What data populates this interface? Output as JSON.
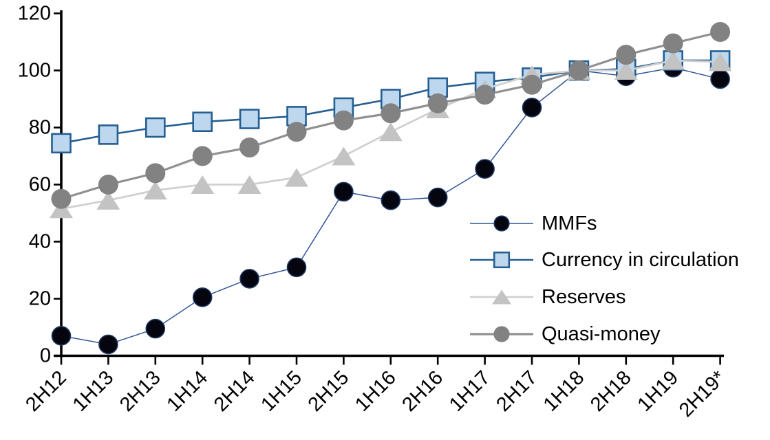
{
  "background": "#ffffff",
  "axis_color": "#000000",
  "chart_data": {
    "type": "line",
    "title": "",
    "xlabel": "",
    "ylabel": "",
    "grid": false,
    "categories": [
      "2H12",
      "1H13",
      "2H13",
      "1H14",
      "2H14",
      "1H15",
      "2H15",
      "1H16",
      "2H16",
      "1H17",
      "2H17",
      "1H18",
      "2H18",
      "1H19",
      "2H19*"
    ],
    "y_axis": {
      "min": 0,
      "max": 120,
      "step": 20,
      "tick_labels": [
        "0",
        "20",
        "40",
        "60",
        "80",
        "100",
        "120"
      ]
    },
    "series": [
      {
        "name": "MMFs",
        "slug": "mmfs",
        "marker": "circle",
        "marker_size": 27,
        "marker_fill": "#05050f",
        "marker_stroke": "#1f3864",
        "marker_stroke_width": 1.6,
        "line_color": "#2f5597",
        "line_width": 1.5,
        "values": [
          7,
          4,
          9.5,
          20.5,
          27,
          31,
          57.5,
          54.5,
          55.5,
          65.5,
          87,
          100,
          98,
          101,
          97
        ]
      },
      {
        "name": "Currency in circulation",
        "slug": "currency-in-circulation",
        "marker": "square",
        "marker_size": 27,
        "marker_fill": "#bdd7ee",
        "marker_stroke": "#255e91",
        "marker_stroke_width": 2.6,
        "line_color": "#255e91",
        "line_width": 2.6,
        "values": [
          74.5,
          77.5,
          80,
          82,
          83,
          84,
          87,
          90,
          94,
          96,
          97.5,
          100,
          100.5,
          103.5,
          103.5
        ]
      },
      {
        "name": "Reserves",
        "slug": "reserves",
        "marker": "triangle",
        "marker_size": 30,
        "marker_fill": "#c3c3c3",
        "marker_stroke": "none",
        "marker_stroke_width": 0,
        "line_color": "#d0d0d0",
        "line_width": 2.8,
        "values": [
          51.5,
          54.5,
          58,
          60,
          60,
          62.5,
          70,
          78.5,
          86.5,
          93.5,
          98.5,
          100,
          100,
          103.5,
          103
        ]
      },
      {
        "name": "Quasi-money",
        "slug": "quasi-money",
        "marker": "circle",
        "marker_size": 29,
        "marker_fill": "#828282",
        "marker_stroke": "none",
        "marker_stroke_width": 0,
        "line_color": "#909090",
        "line_width": 3.2,
        "values": [
          55,
          60,
          64,
          70,
          73,
          78.5,
          82.5,
          85,
          88.5,
          91.5,
          95,
          100,
          105.5,
          109.5,
          113.5
        ]
      }
    ],
    "legend": {
      "position": "inside-right",
      "entries": [
        "MMFs",
        "Currency in circulation",
        "Reserves",
        "Quasi-money"
      ]
    }
  }
}
